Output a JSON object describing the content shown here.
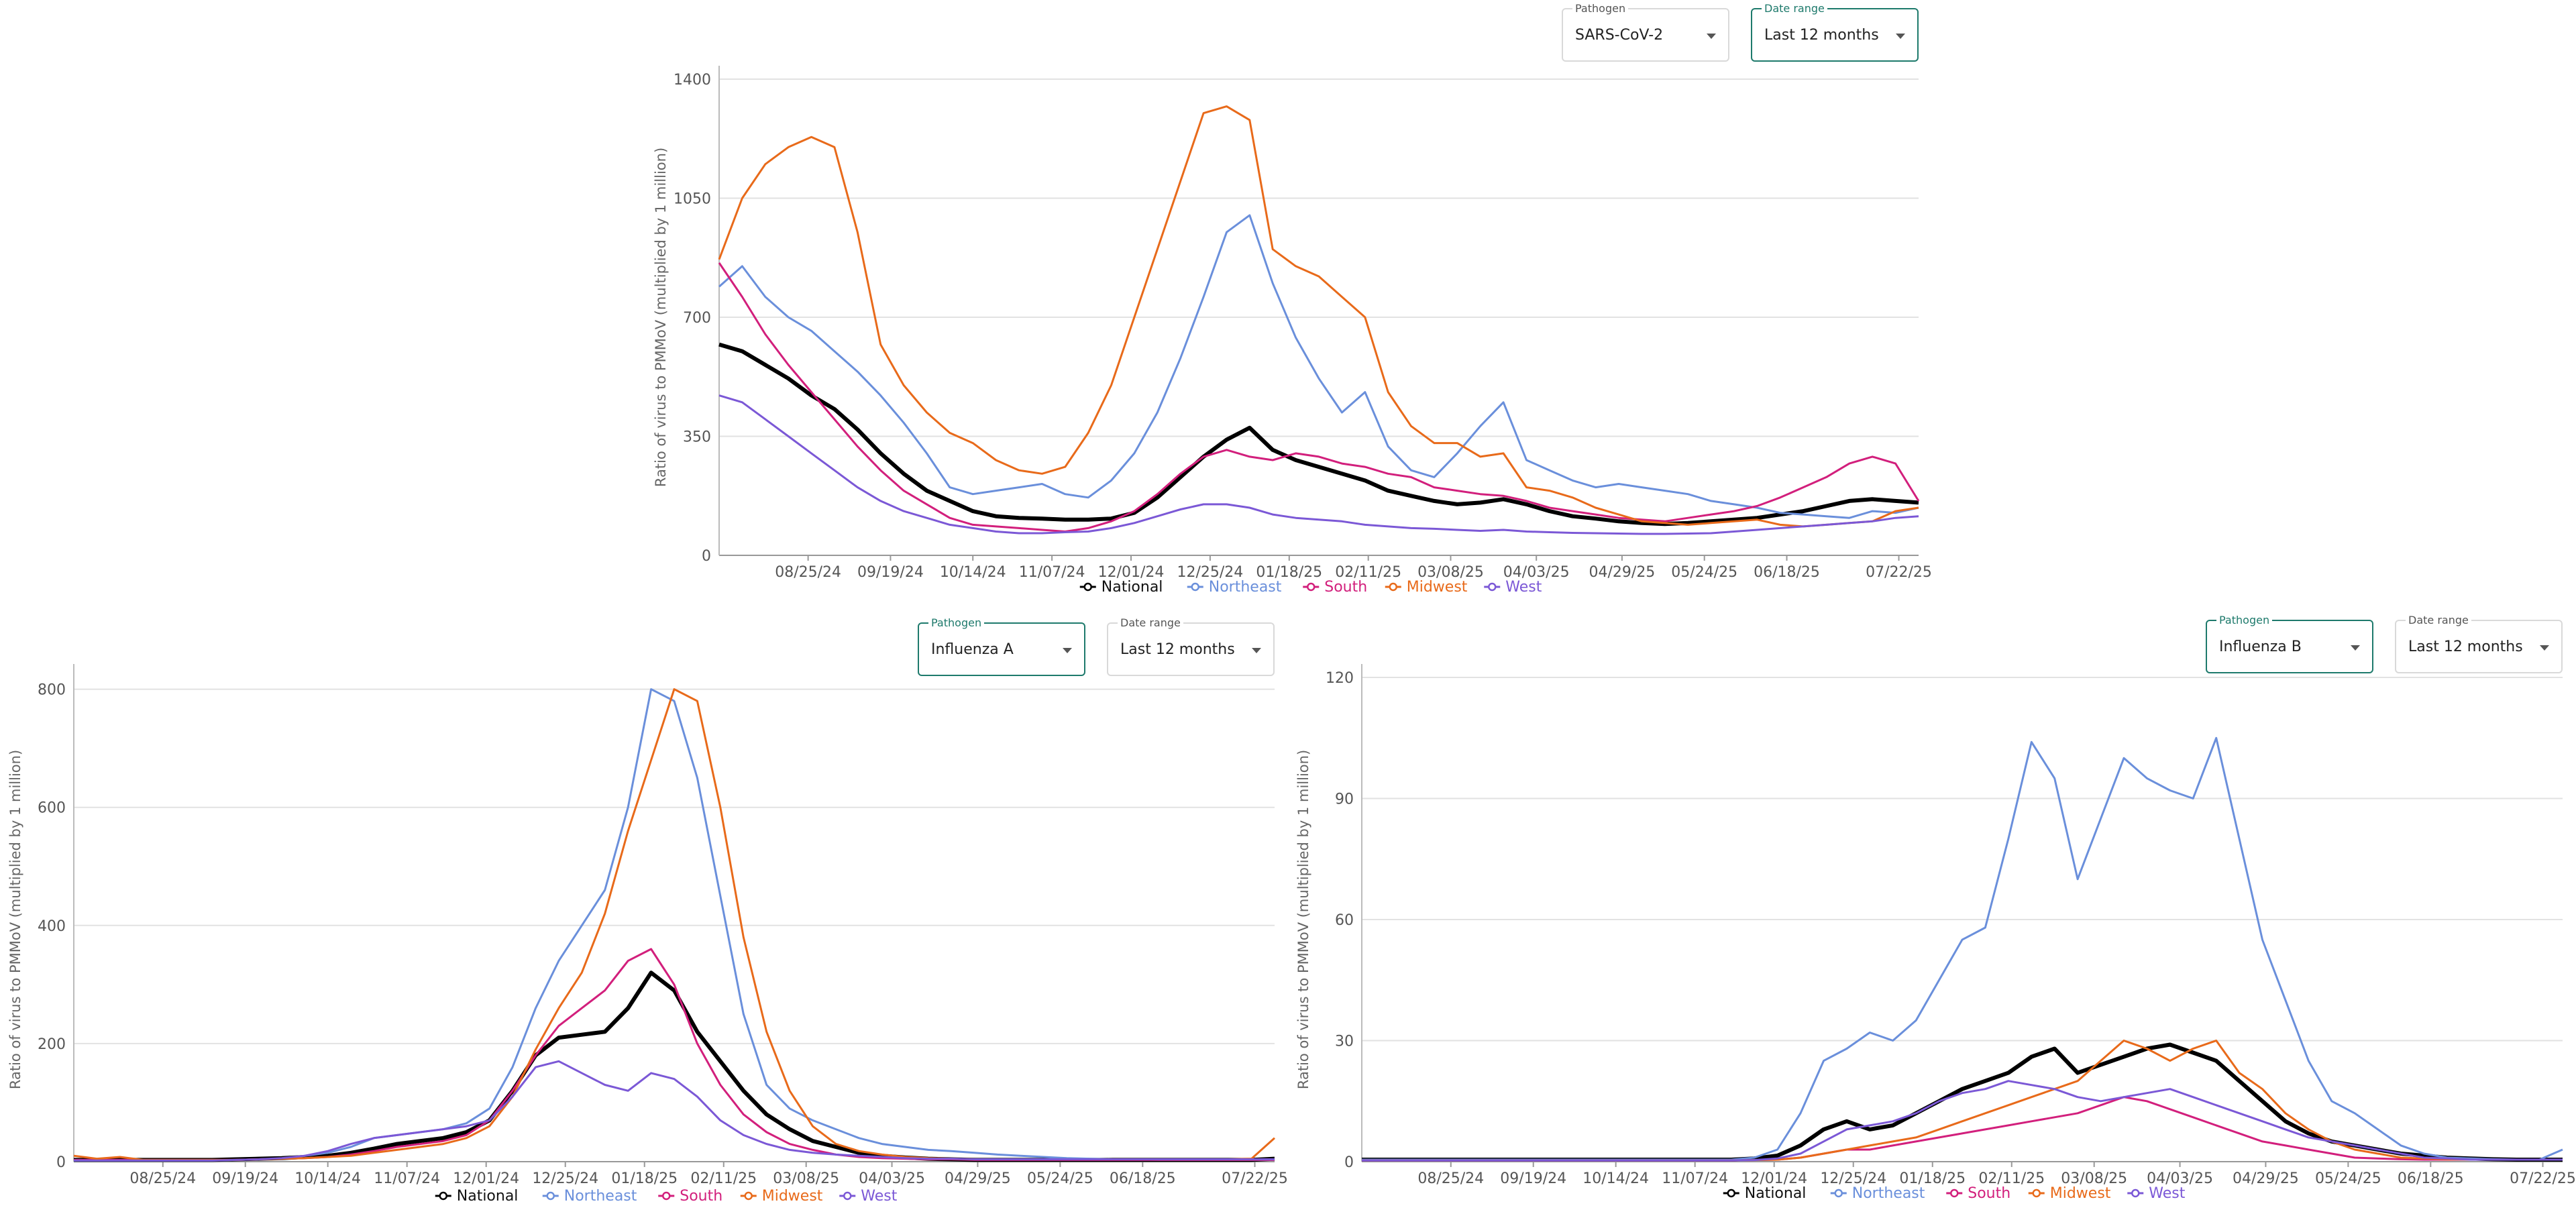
{
  "controls": {
    "pathogen_label": "Pathogen",
    "date_range_label": "Date range",
    "date_range_value": "Last 12 months"
  },
  "colors": {
    "National": "#000000",
    "Northeast": "#6a8fdb",
    "South": "#d21f7c",
    "Midwest": "#e86a1a",
    "West": "#7b58d6"
  },
  "chart_data": [
    {
      "type": "line",
      "pathogen": "SARS-CoV-2",
      "ylabel": "Ratio of virus to PMMoV (multiplied by 1 million)",
      "xlabel": "",
      "ylim": [
        0,
        1400
      ],
      "yticks": [
        0,
        350,
        700,
        1050,
        1400
      ],
      "xticks": [
        "08/25/24",
        "09/19/24",
        "10/14/24",
        "11/07/24",
        "12/01/24",
        "12/25/24",
        "01/18/25",
        "02/11/25",
        "03/08/25",
        "04/03/25",
        "04/29/25",
        "05/24/25",
        "06/18/25",
        "07/22/25"
      ],
      "x_dates": [
        "07/29/24",
        "08/05/24",
        "08/12/24",
        "08/19/24",
        "08/26/24",
        "09/02/24",
        "09/09/24",
        "09/16/24",
        "09/23/24",
        "09/30/24",
        "10/07/24",
        "10/14/24",
        "10/21/24",
        "10/28/24",
        "11/04/24",
        "11/11/24",
        "11/18/24",
        "11/25/24",
        "12/02/24",
        "12/09/24",
        "12/16/24",
        "12/23/24",
        "12/30/24",
        "01/06/25",
        "01/13/25",
        "01/20/25",
        "01/27/25",
        "02/03/25",
        "02/10/25",
        "02/17/25",
        "02/24/25",
        "03/03/25",
        "03/10/25",
        "03/17/25",
        "03/24/25",
        "03/31/25",
        "04/07/25",
        "04/14/25",
        "04/21/25",
        "04/28/25",
        "05/05/25",
        "05/12/25",
        "05/19/25",
        "05/26/25",
        "06/02/25",
        "06/09/25",
        "06/16/25",
        "06/23/25",
        "06/30/25",
        "07/07/25",
        "07/14/25",
        "07/21/25",
        "07/28/25"
      ],
      "series": [
        {
          "name": "National",
          "values": [
            620,
            600,
            560,
            520,
            470,
            430,
            370,
            300,
            240,
            190,
            160,
            130,
            115,
            110,
            108,
            105,
            105,
            108,
            125,
            170,
            230,
            290,
            340,
            375,
            310,
            280,
            260,
            240,
            220,
            190,
            175,
            160,
            150,
            155,
            165,
            150,
            130,
            115,
            108,
            100,
            95,
            92,
            95,
            100,
            105,
            110,
            120,
            130,
            145,
            160,
            165,
            160,
            155
          ]
        },
        {
          "name": "Northeast",
          "values": [
            790,
            850,
            760,
            700,
            660,
            600,
            540,
            470,
            390,
            300,
            200,
            180,
            190,
            200,
            210,
            180,
            170,
            220,
            300,
            420,
            580,
            760,
            950,
            1000,
            800,
            640,
            520,
            420,
            480,
            320,
            250,
            230,
            300,
            380,
            450,
            280,
            250,
            220,
            200,
            210,
            200,
            190,
            180,
            160,
            150,
            140,
            125,
            120,
            115,
            110,
            130,
            125,
            140
          ]
        },
        {
          "name": "South",
          "values": [
            860,
            760,
            650,
            560,
            480,
            400,
            320,
            250,
            190,
            150,
            110,
            90,
            85,
            80,
            75,
            70,
            80,
            100,
            130,
            180,
            240,
            290,
            310,
            290,
            280,
            300,
            290,
            270,
            260,
            240,
            230,
            200,
            190,
            180,
            175,
            160,
            140,
            130,
            120,
            110,
            105,
            100,
            110,
            120,
            130,
            145,
            170,
            200,
            230,
            270,
            290,
            270,
            160
          ]
        },
        {
          "name": "Midwest",
          "values": [
            870,
            1050,
            1150,
            1200,
            1230,
            1200,
            950,
            620,
            500,
            420,
            360,
            330,
            280,
            250,
            240,
            260,
            360,
            500,
            700,
            900,
            1100,
            1300,
            1320,
            1280,
            900,
            850,
            820,
            760,
            700,
            480,
            380,
            330,
            330,
            290,
            300,
            200,
            190,
            170,
            140,
            120,
            100,
            95,
            90,
            95,
            100,
            105,
            90,
            85,
            90,
            95,
            100,
            130,
            140
          ]
        },
        {
          "name": "West",
          "values": [
            470,
            450,
            400,
            350,
            300,
            250,
            200,
            160,
            130,
            110,
            90,
            80,
            70,
            65,
            65,
            68,
            70,
            80,
            95,
            115,
            135,
            150,
            150,
            140,
            120,
            110,
            105,
            100,
            90,
            85,
            80,
            78,
            75,
            72,
            75,
            70,
            68,
            66,
            65,
            64,
            63,
            63,
            64,
            65,
            70,
            75,
            80,
            85,
            90,
            95,
            100,
            110,
            115
          ]
        }
      ]
    },
    {
      "type": "line",
      "pathogen": "Influenza A",
      "ylabel": "Ratio of virus to PMMoV (multiplied by 1 million)",
      "xlabel": "",
      "ylim": [
        0,
        820
      ],
      "yticks": [
        0,
        200,
        400,
        600,
        800
      ],
      "xticks": [
        "08/25/24",
        "09/19/24",
        "10/14/24",
        "11/07/24",
        "12/01/24",
        "12/25/24",
        "01/18/25",
        "02/11/25",
        "03/08/25",
        "04/03/25",
        "04/29/25",
        "05/24/25",
        "06/18/25",
        "07/22/25"
      ],
      "series": [
        {
          "name": "National",
          "values": [
            3,
            3,
            3,
            3,
            3,
            3,
            3,
            4,
            5,
            6,
            8,
            10,
            15,
            22,
            30,
            35,
            40,
            50,
            70,
            120,
            180,
            210,
            215,
            220,
            260,
            320,
            290,
            220,
            170,
            120,
            80,
            55,
            35,
            25,
            15,
            10,
            7,
            5,
            4,
            3,
            3,
            3,
            3,
            3,
            3,
            3,
            3,
            3,
            3,
            3,
            3,
            3,
            5
          ]
        },
        {
          "name": "Northeast",
          "values": [
            2,
            2,
            2,
            2,
            2,
            2,
            2,
            3,
            4,
            5,
            10,
            15,
            25,
            40,
            45,
            50,
            55,
            65,
            90,
            160,
            260,
            340,
            400,
            460,
            600,
            800,
            780,
            650,
            450,
            250,
            130,
            90,
            70,
            55,
            40,
            30,
            25,
            20,
            18,
            15,
            12,
            10,
            8,
            6,
            5,
            4,
            4,
            3,
            3,
            3,
            3,
            3,
            3
          ]
        },
        {
          "name": "South",
          "values": [
            3,
            3,
            3,
            3,
            3,
            3,
            3,
            3,
            4,
            5,
            6,
            8,
            12,
            18,
            25,
            30,
            35,
            45,
            70,
            120,
            180,
            230,
            260,
            290,
            340,
            360,
            300,
            200,
            130,
            80,
            50,
            30,
            20,
            12,
            8,
            6,
            5,
            4,
            4,
            3,
            3,
            3,
            3,
            3,
            3,
            3,
            3,
            3,
            3,
            3,
            3,
            3,
            3
          ]
        },
        {
          "name": "Midwest",
          "values": [
            10,
            5,
            8,
            3,
            3,
            3,
            3,
            3,
            4,
            5,
            6,
            8,
            10,
            15,
            20,
            25,
            30,
            40,
            60,
            110,
            190,
            260,
            320,
            420,
            560,
            680,
            800,
            780,
            600,
            380,
            220,
            120,
            60,
            30,
            18,
            12,
            8,
            6,
            5,
            4,
            4,
            4,
            4,
            4,
            4,
            4,
            4,
            4,
            4,
            4,
            4,
            5,
            40
          ]
        },
        {
          "name": "West",
          "values": [
            2,
            2,
            2,
            2,
            2,
            2,
            2,
            3,
            4,
            6,
            10,
            18,
            30,
            40,
            45,
            50,
            55,
            60,
            70,
            110,
            160,
            170,
            150,
            130,
            120,
            150,
            140,
            110,
            70,
            45,
            30,
            20,
            15,
            12,
            10,
            8,
            6,
            5,
            5,
            4,
            4,
            4,
            4,
            4,
            4,
            4,
            4,
            4,
            4,
            4,
            4,
            4,
            4
          ]
        }
      ]
    },
    {
      "type": "line",
      "pathogen": "Influenza B",
      "ylabel": "Ratio of virus to PMMoV (multiplied by 1 million)",
      "xlabel": "",
      "ylim": [
        0,
        120
      ],
      "yticks": [
        0,
        30,
        60,
        90,
        120
      ],
      "xticks": [
        "08/25/24",
        "09/19/24",
        "10/14/24",
        "11/07/24",
        "12/01/24",
        "12/25/24",
        "01/18/25",
        "02/11/25",
        "03/08/25",
        "04/03/25",
        "04/29/25",
        "05/24/25",
        "06/18/25",
        "07/22/25"
      ],
      "series": [
        {
          "name": "National",
          "values": [
            0.5,
            0.5,
            0.5,
            0.5,
            0.5,
            0.5,
            0.5,
            0.5,
            0.5,
            0.5,
            0.5,
            0.5,
            0.5,
            0.5,
            0.5,
            0.5,
            0.5,
            0.8,
            1.5,
            4,
            8,
            10,
            8,
            9,
            12,
            15,
            18,
            20,
            22,
            26,
            28,
            22,
            24,
            26,
            28,
            29,
            27,
            25,
            20,
            15,
            10,
            7,
            5,
            4,
            3,
            2,
            1.5,
            1,
            0.8,
            0.6,
            0.5,
            0.5,
            0.5
          ]
        },
        {
          "name": "Northeast",
          "values": [
            0.5,
            0.5,
            0.5,
            0.5,
            0.5,
            0.5,
            0.5,
            0.5,
            0.5,
            0.5,
            0.5,
            0.5,
            0.5,
            0.5,
            0.5,
            0.5,
            0.5,
            1,
            3,
            12,
            25,
            28,
            32,
            30,
            35,
            45,
            55,
            58,
            80,
            104,
            95,
            70,
            85,
            100,
            95,
            92,
            90,
            105,
            80,
            55,
            40,
            25,
            15,
            12,
            8,
            4,
            2,
            1,
            0.8,
            0.6,
            0.5,
            0.5,
            3
          ]
        },
        {
          "name": "South",
          "values": [
            0.3,
            0.3,
            0.3,
            0.3,
            0.3,
            0.3,
            0.3,
            0.3,
            0.3,
            0.3,
            0.3,
            0.3,
            0.3,
            0.3,
            0.3,
            0.3,
            0.3,
            0.4,
            0.5,
            1,
            2,
            3,
            3,
            4,
            5,
            6,
            7,
            8,
            9,
            10,
            11,
            12,
            14,
            16,
            15,
            13,
            11,
            9,
            7,
            5,
            4,
            3,
            2,
            1,
            0.8,
            0.6,
            0.5,
            0.5,
            0.5,
            0.5,
            0.5,
            0.5,
            0.5
          ]
        },
        {
          "name": "Midwest",
          "values": [
            0.3,
            0.3,
            0.3,
            0.3,
            0.3,
            0.3,
            0.3,
            0.3,
            0.3,
            0.3,
            0.3,
            0.3,
            0.3,
            0.3,
            0.3,
            0.3,
            0.3,
            0.4,
            0.5,
            1,
            2,
            3,
            4,
            5,
            6,
            8,
            10,
            12,
            14,
            16,
            18,
            20,
            25,
            30,
            28,
            25,
            28,
            30,
            22,
            18,
            12,
            8,
            5,
            3,
            2,
            1,
            0.8,
            0.6,
            0.5,
            0.5,
            0.5,
            0.5,
            0.5
          ]
        },
        {
          "name": "West",
          "values": [
            0.3,
            0.3,
            0.3,
            0.3,
            0.3,
            0.3,
            0.3,
            0.3,
            0.3,
            0.3,
            0.3,
            0.3,
            0.3,
            0.3,
            0.3,
            0.3,
            0.3,
            0.4,
            0.8,
            2,
            5,
            8,
            9,
            10,
            12,
            15,
            17,
            18,
            20,
            19,
            18,
            16,
            15,
            16,
            17,
            18,
            16,
            14,
            12,
            10,
            8,
            6,
            5,
            4,
            3,
            2,
            1,
            0.8,
            0.5,
            0.5,
            0.5,
            0.5,
            0.5
          ]
        }
      ]
    }
  ]
}
